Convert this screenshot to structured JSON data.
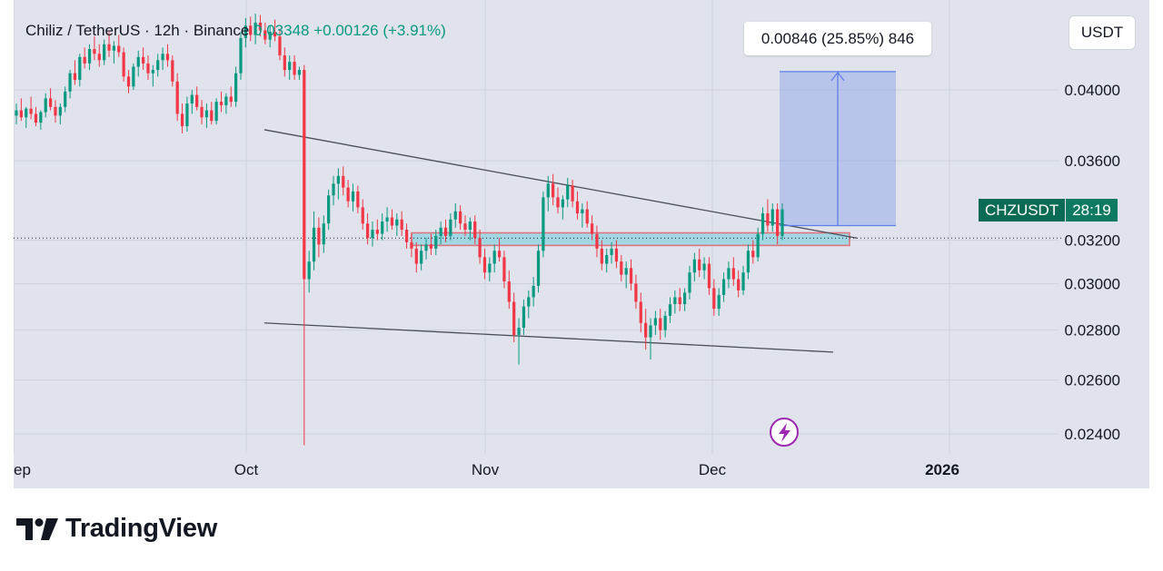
{
  "legend": {
    "symbol_text": "Chiliz / TetherUS · 12h · Binance",
    "price": "0.03348",
    "change": "+0.00126 (+3.91%)"
  },
  "measure_label": "0.00846 (25.85%) 846",
  "currency_button": "USDT",
  "symbol_tag": {
    "symbol": "CHZUSDT",
    "timer": "28:19"
  },
  "branding": {
    "name": "TradingView"
  },
  "colors": {
    "up": "#089981",
    "down": "#f23645",
    "measure": "#5d7fe8",
    "zone": "#8fd3e0",
    "zone_border": "#e0707a"
  },
  "chart_data": {
    "type": "candlestick",
    "title": "Chiliz / TetherUS · 12h · Binance",
    "price_axis": {
      "ticks": [
        0.024,
        0.026,
        0.028,
        0.03,
        0.032,
        0.036,
        0.04
      ],
      "scale": "log"
    },
    "time_axis": {
      "ticks": [
        "ep",
        "Oct",
        "Nov",
        "Dec",
        "2026"
      ]
    },
    "last_price": 0.03348,
    "current_price_line": 0.0321,
    "grid": true,
    "candles": [
      [
        0.0385,
        0.0392,
        0.038,
        0.0388
      ],
      [
        0.0388,
        0.0395,
        0.0382,
        0.0384
      ],
      [
        0.0384,
        0.039,
        0.0378,
        0.0389
      ],
      [
        0.0389,
        0.0396,
        0.0383,
        0.0386
      ],
      [
        0.0386,
        0.039,
        0.0379,
        0.0381
      ],
      [
        0.0381,
        0.0388,
        0.0377,
        0.0387
      ],
      [
        0.0387,
        0.0398,
        0.0384,
        0.0395
      ],
      [
        0.0395,
        0.0401,
        0.0388,
        0.039
      ],
      [
        0.039,
        0.0394,
        0.0381,
        0.0385
      ],
      [
        0.0385,
        0.0392,
        0.038,
        0.039
      ],
      [
        0.039,
        0.0402,
        0.0387,
        0.0399
      ],
      [
        0.0399,
        0.0412,
        0.0395,
        0.041
      ],
      [
        0.041,
        0.0418,
        0.0403,
        0.0406
      ],
      [
        0.0406,
        0.0422,
        0.0402,
        0.042
      ],
      [
        0.042,
        0.0426,
        0.0413,
        0.0416
      ],
      [
        0.0416,
        0.0428,
        0.0412,
        0.0425
      ],
      [
        0.0425,
        0.0433,
        0.0418,
        0.0422
      ],
      [
        0.0422,
        0.0428,
        0.0414,
        0.0418
      ],
      [
        0.0418,
        0.0431,
        0.0415,
        0.0428
      ],
      [
        0.0428,
        0.0436,
        0.042,
        0.0424
      ],
      [
        0.0424,
        0.043,
        0.0416,
        0.0427
      ],
      [
        0.0427,
        0.0434,
        0.042,
        0.0423
      ],
      [
        0.0423,
        0.0426,
        0.0405,
        0.0408
      ],
      [
        0.0408,
        0.0412,
        0.0398,
        0.0402
      ],
      [
        0.0402,
        0.0416,
        0.04,
        0.0414
      ],
      [
        0.0414,
        0.0424,
        0.0408,
        0.042
      ],
      [
        0.042,
        0.0426,
        0.0412,
        0.0416
      ],
      [
        0.0416,
        0.0421,
        0.0406,
        0.041
      ],
      [
        0.041,
        0.0415,
        0.0402,
        0.0412
      ],
      [
        0.0412,
        0.0422,
        0.0408,
        0.0418
      ],
      [
        0.0418,
        0.0426,
        0.0412,
        0.0422
      ],
      [
        0.0422,
        0.0428,
        0.0414,
        0.0418
      ],
      [
        0.0418,
        0.0421,
        0.0402,
        0.0405
      ],
      [
        0.0405,
        0.041,
        0.0382,
        0.0386
      ],
      [
        0.0386,
        0.0392,
        0.0375,
        0.0379
      ],
      [
        0.0379,
        0.0396,
        0.0376,
        0.0392
      ],
      [
        0.0392,
        0.04,
        0.0386,
        0.0397
      ],
      [
        0.0397,
        0.0402,
        0.0388,
        0.039
      ],
      [
        0.039,
        0.0394,
        0.038,
        0.0384
      ],
      [
        0.0384,
        0.0392,
        0.0378,
        0.0388
      ],
      [
        0.0388,
        0.0393,
        0.038,
        0.0382
      ],
      [
        0.0382,
        0.0395,
        0.038,
        0.0393
      ],
      [
        0.0393,
        0.0399,
        0.0387,
        0.0391
      ],
      [
        0.0391,
        0.0398,
        0.0386,
        0.0396
      ],
      [
        0.0396,
        0.0402,
        0.039,
        0.0393
      ],
      [
        0.0393,
        0.0414,
        0.039,
        0.041
      ],
      [
        0.041,
        0.0436,
        0.0406,
        0.0432
      ],
      [
        0.0432,
        0.0445,
        0.0426,
        0.044
      ],
      [
        0.044,
        0.0446,
        0.043,
        0.0434
      ],
      [
        0.0434,
        0.0448,
        0.0428,
        0.0442
      ],
      [
        0.0442,
        0.0447,
        0.0433,
        0.0437
      ],
      [
        0.0437,
        0.0442,
        0.0428,
        0.0431
      ],
      [
        0.0431,
        0.044,
        0.0426,
        0.0436
      ],
      [
        0.0436,
        0.0444,
        0.043,
        0.0433
      ],
      [
        0.0433,
        0.0438,
        0.0418,
        0.0421
      ],
      [
        0.0421,
        0.0426,
        0.0408,
        0.0412
      ],
      [
        0.0412,
        0.0421,
        0.0406,
        0.0417
      ],
      [
        0.0417,
        0.0421,
        0.0406,
        0.0409
      ],
      [
        0.0409,
        0.0414,
        0.0406,
        0.0412
      ],
      [
        0.0412,
        0.0415,
        0.0236,
        0.0302
      ],
      [
        0.0302,
        0.0315,
        0.0296,
        0.031
      ],
      [
        0.031,
        0.0334,
        0.0306,
        0.0326
      ],
      [
        0.0326,
        0.0331,
        0.0312,
        0.0318
      ],
      [
        0.0318,
        0.0332,
        0.0314,
        0.0328
      ],
      [
        0.0328,
        0.0345,
        0.0325,
        0.0342
      ],
      [
        0.0342,
        0.0352,
        0.0337,
        0.0348
      ],
      [
        0.0348,
        0.0356,
        0.034,
        0.0352
      ],
      [
        0.0352,
        0.0357,
        0.0342,
        0.0346
      ],
      [
        0.0346,
        0.035,
        0.0336,
        0.0339
      ],
      [
        0.0339,
        0.0348,
        0.0334,
        0.0344
      ],
      [
        0.0344,
        0.0347,
        0.0333,
        0.0336
      ],
      [
        0.0336,
        0.034,
        0.0325,
        0.0328
      ],
      [
        0.0328,
        0.0333,
        0.0318,
        0.0321
      ],
      [
        0.0321,
        0.0329,
        0.0317,
        0.0325
      ],
      [
        0.0325,
        0.033,
        0.032,
        0.0323
      ],
      [
        0.0323,
        0.0333,
        0.032,
        0.0329
      ],
      [
        0.0329,
        0.0336,
        0.0324,
        0.0331
      ],
      [
        0.0331,
        0.0335,
        0.0325,
        0.0327
      ],
      [
        0.0327,
        0.0333,
        0.0322,
        0.033
      ],
      [
        0.033,
        0.0334,
        0.0322,
        0.0325
      ],
      [
        0.0325,
        0.0328,
        0.0316,
        0.0319
      ],
      [
        0.0319,
        0.0323,
        0.0312,
        0.0316
      ],
      [
        0.0316,
        0.0319,
        0.0305,
        0.0309
      ],
      [
        0.0309,
        0.0318,
        0.0306,
        0.0315
      ],
      [
        0.0315,
        0.0321,
        0.0311,
        0.0318
      ],
      [
        0.0318,
        0.0323,
        0.0313,
        0.0316
      ],
      [
        0.0316,
        0.0325,
        0.0313,
        0.0322
      ],
      [
        0.0322,
        0.0329,
        0.0318,
        0.0326
      ],
      [
        0.0326,
        0.033,
        0.0319,
        0.0322
      ],
      [
        0.0322,
        0.0333,
        0.032,
        0.033
      ],
      [
        0.033,
        0.0338,
        0.0326,
        0.0334
      ],
      [
        0.0334,
        0.0337,
        0.0325,
        0.0328
      ],
      [
        0.0328,
        0.0332,
        0.0322,
        0.0325
      ],
      [
        0.0325,
        0.0331,
        0.032,
        0.0329
      ],
      [
        0.0329,
        0.0332,
        0.0318,
        0.0321
      ],
      [
        0.0321,
        0.0325,
        0.0309,
        0.0312
      ],
      [
        0.0312,
        0.0316,
        0.0302,
        0.0305
      ],
      [
        0.0305,
        0.0312,
        0.0301,
        0.0309
      ],
      [
        0.0309,
        0.0318,
        0.0305,
        0.0315
      ],
      [
        0.0315,
        0.0321,
        0.031,
        0.0312
      ],
      [
        0.0312,
        0.0315,
        0.0298,
        0.0301
      ],
      [
        0.0301,
        0.0306,
        0.0289,
        0.0292
      ],
      [
        0.0292,
        0.0296,
        0.0275,
        0.0278
      ],
      [
        0.0278,
        0.0285,
        0.0266,
        0.0281
      ],
      [
        0.0281,
        0.0293,
        0.0278,
        0.029
      ],
      [
        0.029,
        0.0297,
        0.0285,
        0.0294
      ],
      [
        0.0294,
        0.0303,
        0.029,
        0.0299
      ],
      [
        0.0299,
        0.0318,
        0.0296,
        0.0315
      ],
      [
        0.0315,
        0.0344,
        0.0312,
        0.0341
      ],
      [
        0.0341,
        0.0352,
        0.0334,
        0.0348
      ],
      [
        0.0348,
        0.0353,
        0.0337,
        0.0341
      ],
      [
        0.0341,
        0.0346,
        0.0333,
        0.0336
      ],
      [
        0.0336,
        0.0342,
        0.033,
        0.034
      ],
      [
        0.034,
        0.0351,
        0.0336,
        0.0347
      ],
      [
        0.0347,
        0.035,
        0.0336,
        0.0339
      ],
      [
        0.0339,
        0.0344,
        0.033,
        0.0333
      ],
      [
        0.0333,
        0.0338,
        0.0326,
        0.0335
      ],
      [
        0.0335,
        0.0339,
        0.0326,
        0.0328
      ],
      [
        0.0328,
        0.0332,
        0.032,
        0.0323
      ],
      [
        0.0323,
        0.0327,
        0.0312,
        0.0316
      ],
      [
        0.0316,
        0.032,
        0.0306,
        0.0309
      ],
      [
        0.0309,
        0.0316,
        0.0305,
        0.0313
      ],
      [
        0.0313,
        0.0319,
        0.0309,
        0.0316
      ],
      [
        0.0316,
        0.032,
        0.0307,
        0.031
      ],
      [
        0.031,
        0.0313,
        0.0301,
        0.0304
      ],
      [
        0.0304,
        0.031,
        0.0298,
        0.0307
      ],
      [
        0.0307,
        0.0311,
        0.0297,
        0.03
      ],
      [
        0.03,
        0.0304,
        0.0289,
        0.0292
      ],
      [
        0.0292,
        0.0296,
        0.0279,
        0.0283
      ],
      [
        0.0283,
        0.0289,
        0.0272,
        0.0277
      ],
      [
        0.0277,
        0.0285,
        0.0268,
        0.0282
      ],
      [
        0.0282,
        0.0288,
        0.0278,
        0.0285
      ],
      [
        0.0285,
        0.0289,
        0.0276,
        0.028
      ],
      [
        0.028,
        0.0288,
        0.0277,
        0.0286
      ],
      [
        0.0286,
        0.0294,
        0.0283,
        0.0291
      ],
      [
        0.0291,
        0.0297,
        0.0287,
        0.0294
      ],
      [
        0.0294,
        0.0298,
        0.0288,
        0.0291
      ],
      [
        0.0291,
        0.0298,
        0.0288,
        0.0296
      ],
      [
        0.0296,
        0.0308,
        0.0293,
        0.0305
      ],
      [
        0.0305,
        0.0314,
        0.0301,
        0.0311
      ],
      [
        0.0311,
        0.0316,
        0.0303,
        0.0306
      ],
      [
        0.0306,
        0.0312,
        0.0302,
        0.0309
      ],
      [
        0.0309,
        0.0312,
        0.0295,
        0.0298
      ],
      [
        0.0298,
        0.0302,
        0.0286,
        0.0289
      ],
      [
        0.0289,
        0.0298,
        0.0286,
        0.0295
      ],
      [
        0.0295,
        0.0305,
        0.0292,
        0.0302
      ],
      [
        0.0302,
        0.031,
        0.0298,
        0.0307
      ],
      [
        0.0307,
        0.0312,
        0.0299,
        0.0302
      ],
      [
        0.0302,
        0.0306,
        0.0294,
        0.0297
      ],
      [
        0.0297,
        0.0308,
        0.0295,
        0.0305
      ],
      [
        0.0305,
        0.0318,
        0.0302,
        0.0315
      ],
      [
        0.0315,
        0.032,
        0.0309,
        0.0312
      ],
      [
        0.0312,
        0.0326,
        0.031,
        0.0323
      ],
      [
        0.0323,
        0.0336,
        0.032,
        0.0333
      ],
      [
        0.0333,
        0.034,
        0.0324,
        0.0327
      ],
      [
        0.0327,
        0.0338,
        0.0324,
        0.0335
      ],
      [
        0.0335,
        0.0338,
        0.0318,
        0.0322
      ],
      [
        0.0322,
        0.0338,
        0.032,
        0.0335
      ]
    ],
    "trendlines": [
      {
        "name": "resistance",
        "from": [
          0,
          0.0377
        ],
        "to": [
          1,
          0.0321
        ]
      },
      {
        "name": "support",
        "from": [
          0,
          0.0283
        ],
        "to": [
          1,
          0.0271
        ]
      }
    ],
    "zone": {
      "top": 0.03235,
      "bottom": 0.03175
    },
    "measure": {
      "from": 0.0327,
      "to": 0.0411,
      "label": "0.00846 (25.85%) 846"
    }
  }
}
